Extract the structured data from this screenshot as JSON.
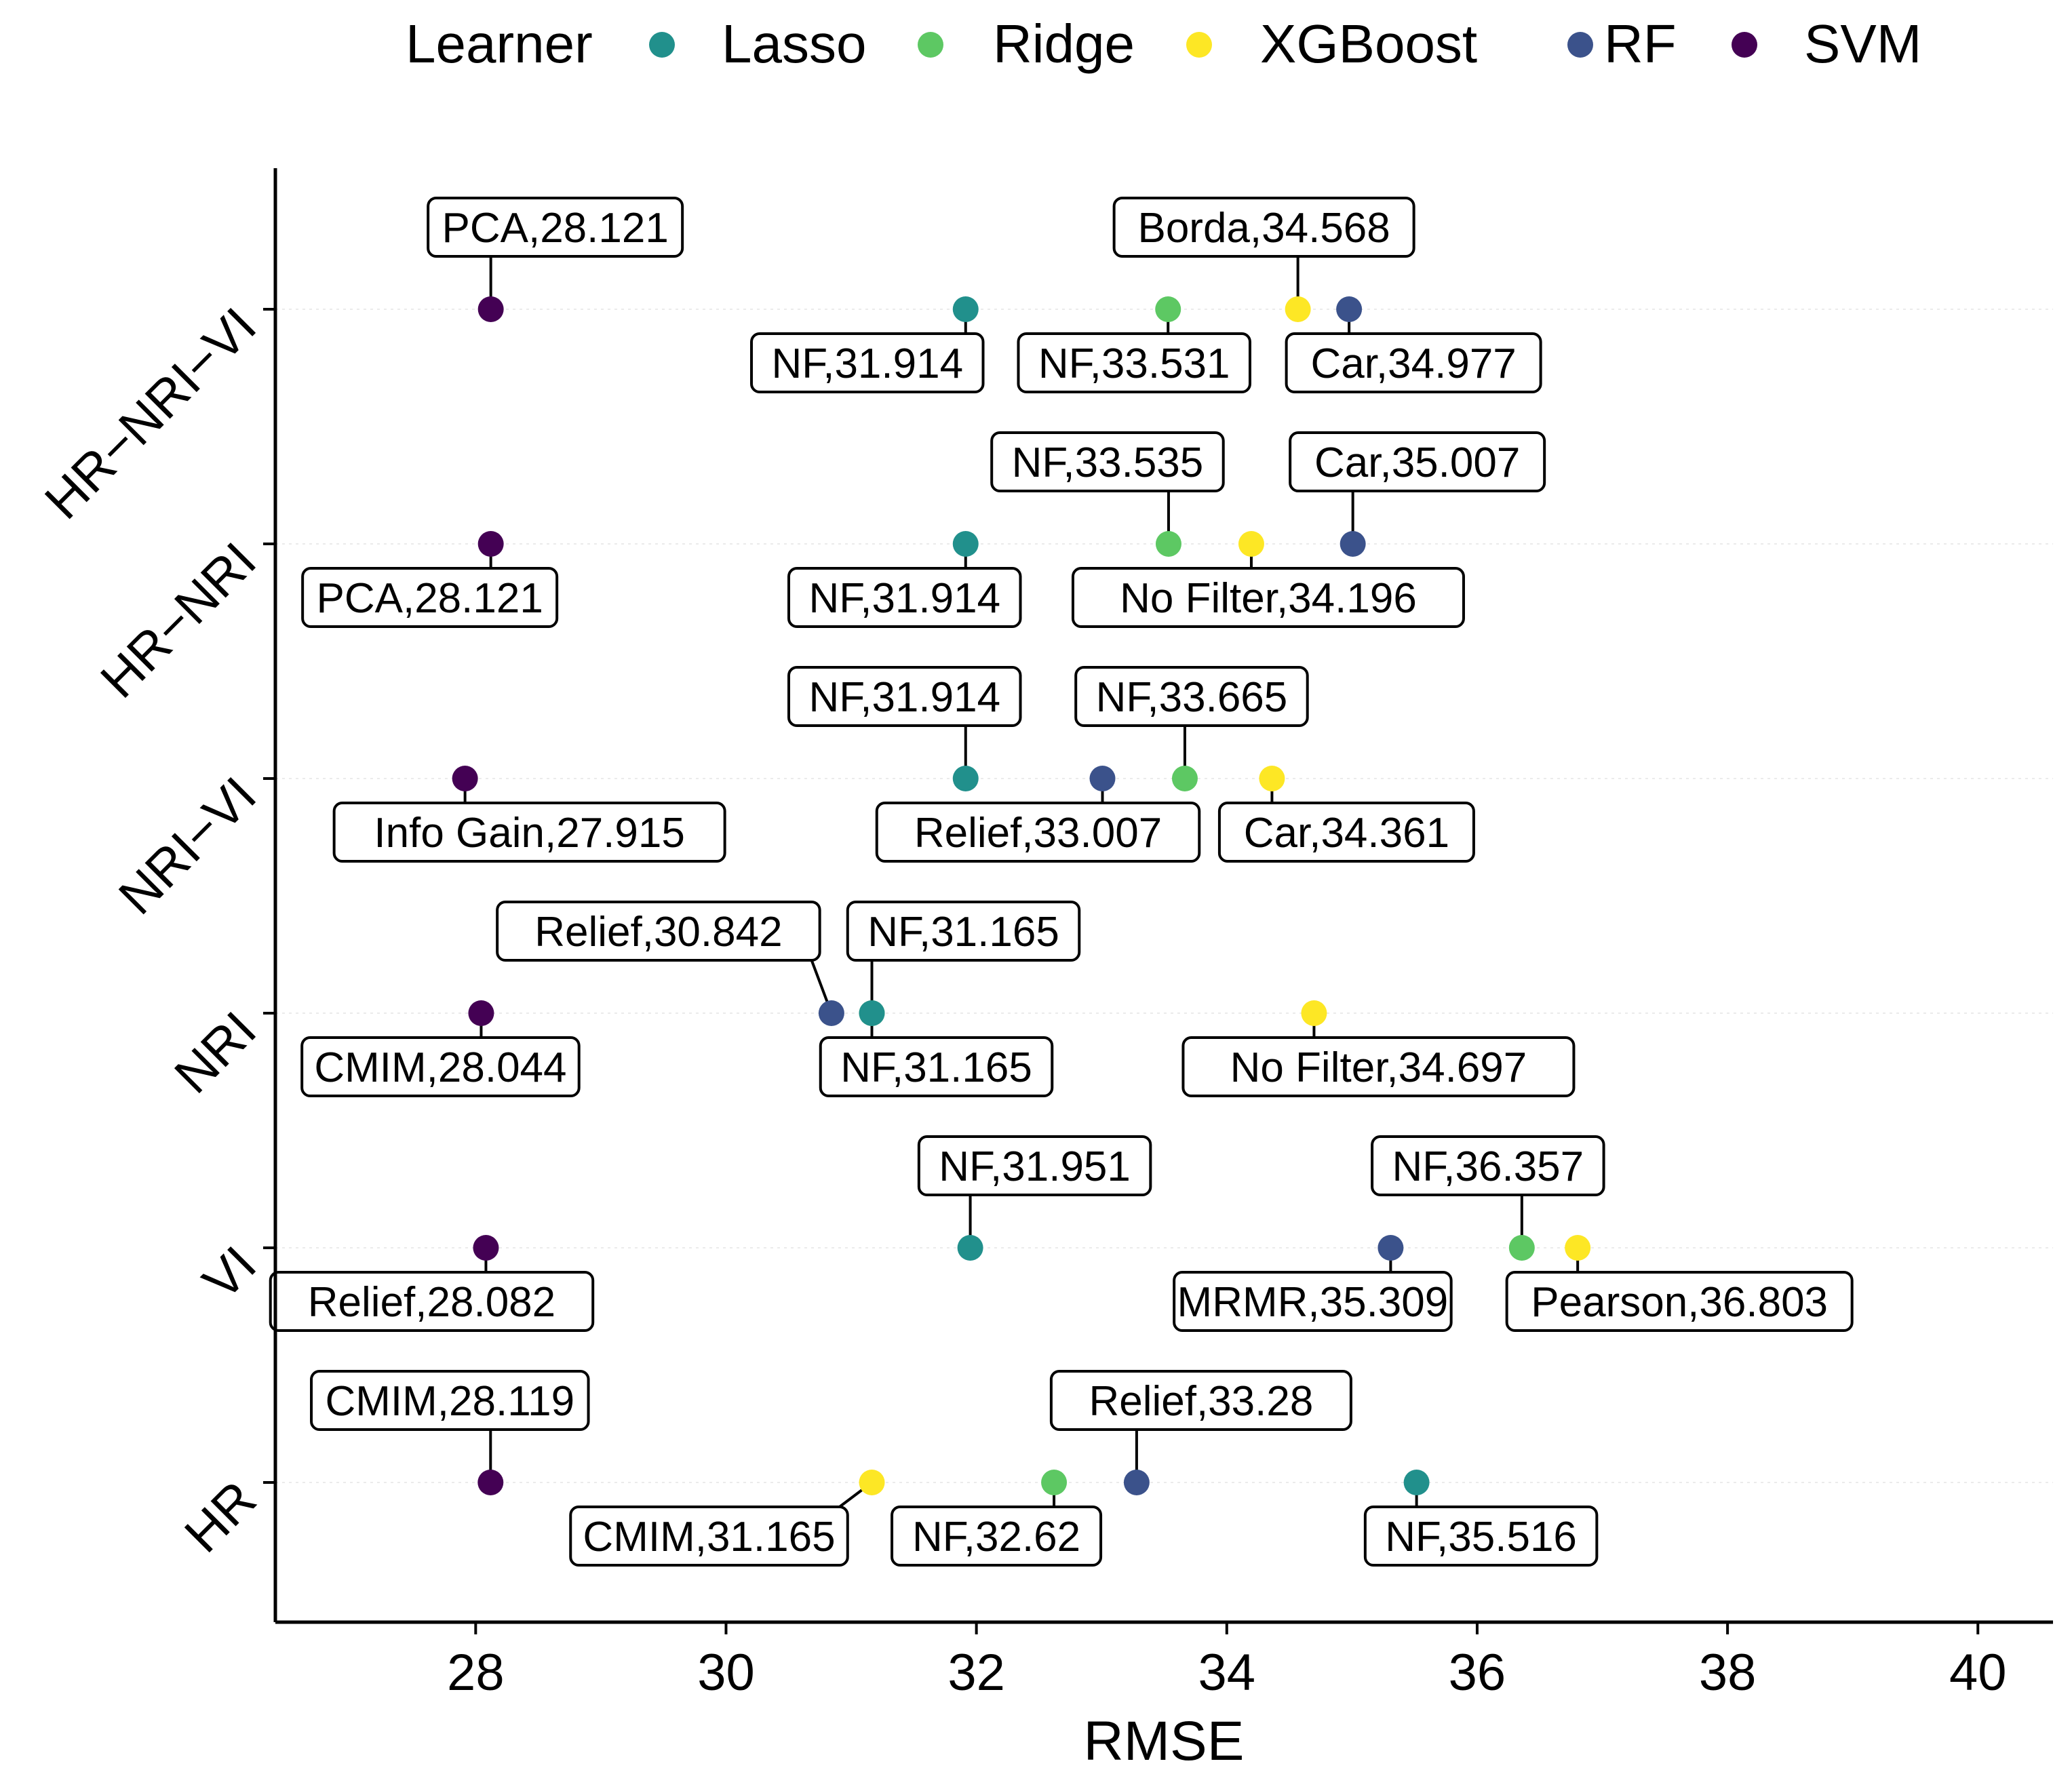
{
  "chart_data": {
    "type": "scatter",
    "xlabel": "RMSE",
    "ylabel": "",
    "xlim": [
      26.4,
      40.6
    ],
    "xticks": [
      28,
      30,
      32,
      34,
      36,
      38,
      40
    ],
    "categories": [
      "HR",
      "VI",
      "NRI",
      "NRI−VI",
      "HR−NRI",
      "HR−NRI−VI"
    ],
    "grid": "horizontal-dotted",
    "legend": {
      "title": "Learner",
      "position": "top",
      "entries": [
        {
          "name": "Lasso",
          "color": "#21908C"
        },
        {
          "name": "Ridge",
          "color": "#5DC863"
        },
        {
          "name": "XGBoost",
          "color": "#FDE725"
        },
        {
          "name": "RF",
          "color": "#3B528B"
        },
        {
          "name": "SVM",
          "color": "#440154"
        }
      ]
    },
    "points": [
      {
        "category": "HR",
        "learner": "SVM",
        "x": 28.119,
        "label": "CMIM,28.119",
        "label_side": "above"
      },
      {
        "category": "HR",
        "learner": "XGBoost",
        "x": 31.165,
        "label": "CMIM,31.165",
        "label_side": "below"
      },
      {
        "category": "HR",
        "learner": "Ridge",
        "x": 32.62,
        "label": "NF,32.62",
        "label_side": "below"
      },
      {
        "category": "HR",
        "learner": "RF",
        "x": 33.28,
        "label": "Relief,33.28",
        "label_side": "above"
      },
      {
        "category": "HR",
        "learner": "Lasso",
        "x": 35.516,
        "label": "NF,35.516",
        "label_side": "below"
      },
      {
        "category": "VI",
        "learner": "SVM",
        "x": 28.082,
        "label": "Relief,28.082",
        "label_side": "below"
      },
      {
        "category": "VI",
        "learner": "Lasso",
        "x": 31.951,
        "label": "NF,31.951",
        "label_side": "above"
      },
      {
        "category": "VI",
        "learner": "RF",
        "x": 35.309,
        "label": "MRMR,35.309",
        "label_side": "below"
      },
      {
        "category": "VI",
        "learner": "Ridge",
        "x": 36.357,
        "label": "NF,36.357",
        "label_side": "above"
      },
      {
        "category": "VI",
        "learner": "XGBoost",
        "x": 36.803,
        "label": "Pearson,36.803",
        "label_side": "below"
      },
      {
        "category": "NRI",
        "learner": "SVM",
        "x": 28.044,
        "label": "CMIM,28.044",
        "label_side": "below"
      },
      {
        "category": "NRI",
        "learner": "RF",
        "x": 30.842,
        "label": "Relief,30.842",
        "label_side": "above"
      },
      {
        "category": "NRI",
        "learner": "Ridge",
        "x": 31.165,
        "label": "NF,31.165",
        "label_side": "above"
      },
      {
        "category": "NRI",
        "learner": "Lasso",
        "x": 31.165,
        "label": "NF,31.165",
        "label_side": "below"
      },
      {
        "category": "NRI",
        "learner": "XGBoost",
        "x": 34.697,
        "label": "No Filter,34.697",
        "label_side": "below"
      },
      {
        "category": "NRI−VI",
        "learner": "SVM",
        "x": 27.915,
        "label": "Info Gain,27.915",
        "label_side": "below"
      },
      {
        "category": "NRI−VI",
        "learner": "Lasso",
        "x": 31.914,
        "label": "NF,31.914",
        "label_side": "above"
      },
      {
        "category": "NRI−VI",
        "learner": "RF",
        "x": 33.007,
        "label": "Relief,33.007",
        "label_side": "below"
      },
      {
        "category": "NRI−VI",
        "learner": "Ridge",
        "x": 33.665,
        "label": "NF,33.665",
        "label_side": "above"
      },
      {
        "category": "NRI−VI",
        "learner": "XGBoost",
        "x": 34.361,
        "label": "Car,34.361",
        "label_side": "below"
      },
      {
        "category": "HR−NRI",
        "learner": "SVM",
        "x": 28.121,
        "label": "PCA,28.121",
        "label_side": "below"
      },
      {
        "category": "HR−NRI",
        "learner": "Lasso",
        "x": 31.914,
        "label": "NF,31.914",
        "label_side": "below"
      },
      {
        "category": "HR−NRI",
        "learner": "Ridge",
        "x": 33.535,
        "label": "NF,33.535",
        "label_side": "above"
      },
      {
        "category": "HR−NRI",
        "learner": "XGBoost",
        "x": 34.196,
        "label": "No Filter,34.196",
        "label_side": "below"
      },
      {
        "category": "HR−NRI",
        "learner": "RF",
        "x": 35.007,
        "label": "Car,35.007",
        "label_side": "above"
      },
      {
        "category": "HR−NRI−VI",
        "learner": "SVM",
        "x": 28.121,
        "label": "PCA,28.121",
        "label_side": "above"
      },
      {
        "category": "HR−NRI−VI",
        "learner": "Lasso",
        "x": 31.914,
        "label": "NF,31.914",
        "label_side": "below"
      },
      {
        "category": "HR−NRI−VI",
        "learner": "Ridge",
        "x": 33.531,
        "label": "NF,33.531",
        "label_side": "below"
      },
      {
        "category": "HR−NRI−VI",
        "learner": "XGBoost",
        "x": 34.568,
        "label": "Borda,34.568",
        "label_side": "above"
      },
      {
        "category": "HR−NRI−VI",
        "learner": "RF",
        "x": 34.977,
        "label": "Car,34.977",
        "label_side": "below"
      }
    ]
  }
}
